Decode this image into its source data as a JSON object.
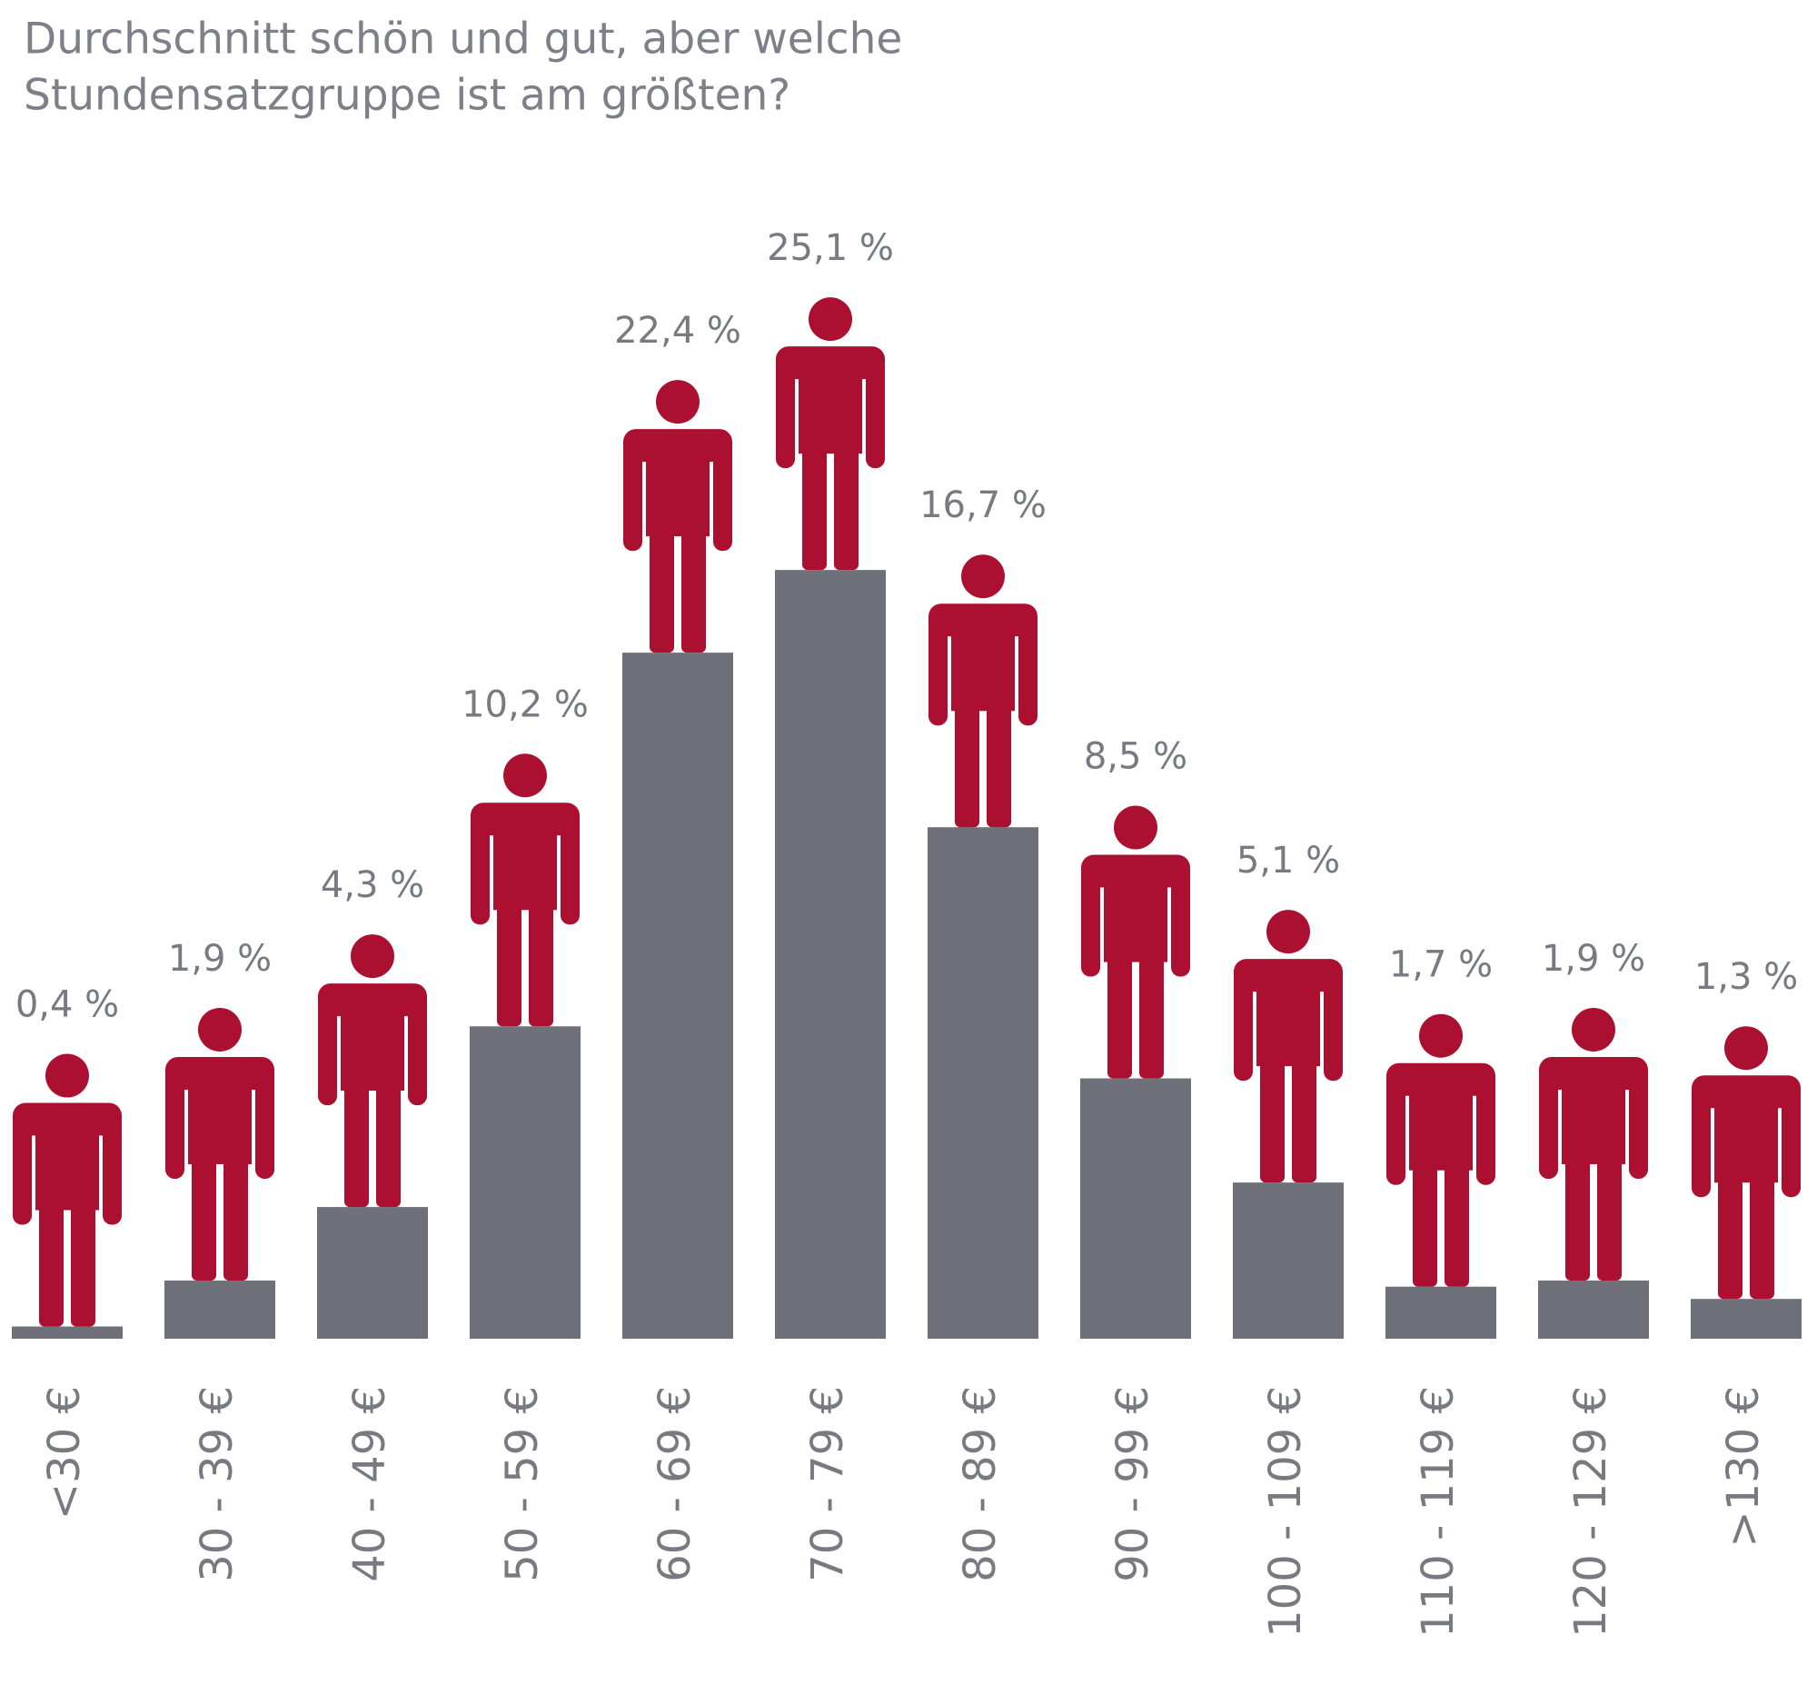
{
  "chart_data": {
    "type": "pictogram-bar",
    "title": [
      "Durchschnitt schön und gut, aber welche",
      "Stundensatzgruppe ist am größten?"
    ],
    "categories": [
      "<30 €",
      "30 - 39 €",
      "40 - 49 €",
      "50 - 59 €",
      "60 - 69 €",
      "70 - 79 €",
      "80 - 89 €",
      "90 - 99 €",
      "100 - 109 €",
      "110 - 119 €",
      "120 - 129 €",
      ">130 €"
    ],
    "values": [
      0.4,
      1.9,
      4.3,
      10.2,
      22.4,
      25.1,
      16.7,
      8.5,
      5.1,
      1.7,
      1.9,
      1.3
    ],
    "value_labels": [
      "0,4 %",
      "1,9 %",
      "4,3 %",
      "10,2 %",
      "22,4 %",
      "25,1 %",
      "16,7 %",
      "8,5 %",
      "5,1 %",
      "1,7 %",
      "1,9 %",
      "1,3 %"
    ],
    "color": "#6e717a",
    "icon_color": "#ab1030"
  }
}
